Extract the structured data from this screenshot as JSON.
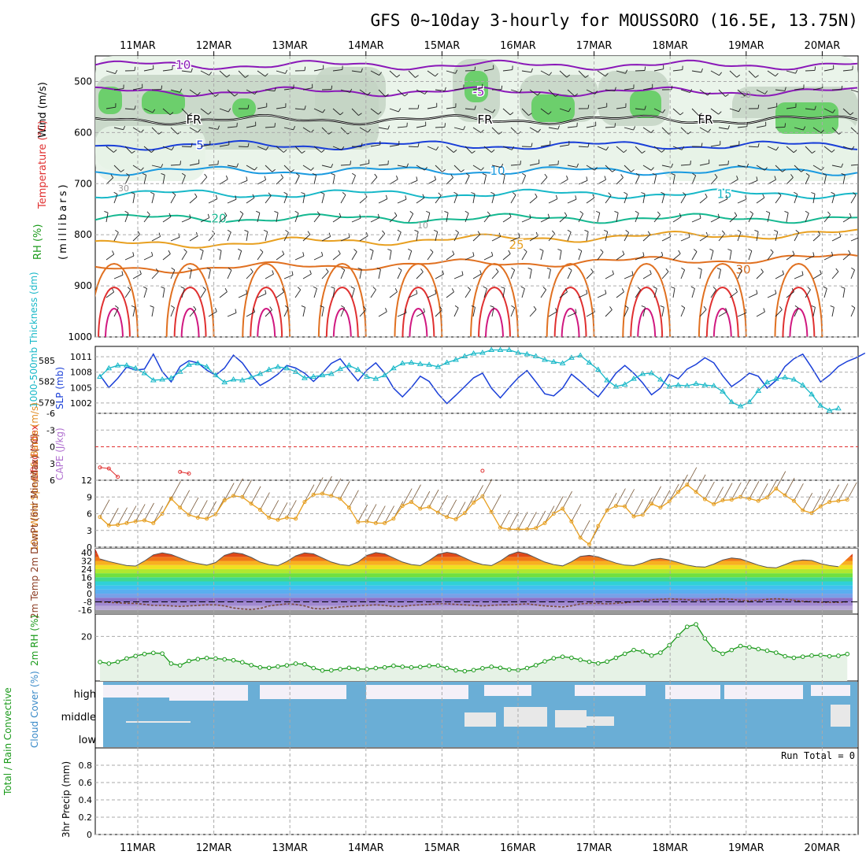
{
  "title": "GFS 0~10day 3-hourly for MOUSSORO (16.5E, 13.75N)",
  "dates": [
    "11MAR",
    "12MAR",
    "13MAR",
    "14MAR",
    "15MAR",
    "16MAR",
    "17MAR",
    "18MAR",
    "19MAR",
    "20MAR"
  ],
  "colors": {
    "purple": "#8a18b8",
    "blue": "#1a3fd8",
    "lightblue": "#1a9ae0",
    "cyan": "#18b8c8",
    "teal": "#14b890",
    "orange": "#e8a020",
    "darkorange": "#e07020",
    "red": "#e03030",
    "magenta": "#d01880",
    "green": "#1a9a1a",
    "cloud": "#6aaed6",
    "cloudlight": "#f4f0f8",
    "rhlight": "#e6f2e6",
    "rhmid": "#c4d4c4",
    "rhgreen": "#5ccc5c",
    "grey": "#999999",
    "brown": "#7a5a3a"
  },
  "chart_data": [
    {
      "type": "contour",
      "panel": "upper-air",
      "ylabel_parts": [
        "Wind (m/s)",
        "Temperature (°C)",
        "RH (%)",
        "(millibars)"
      ],
      "yticks": [
        500,
        600,
        700,
        800,
        900,
        1000
      ],
      "ylim": [
        450,
        1000
      ],
      "temperature_contours": [
        {
          "label": "-10",
          "level_mb": 468
        },
        {
          "label": "-5",
          "level_mb": 520
        },
        {
          "label": "FR",
          "level_mb": 575
        },
        {
          "label": "5",
          "level_mb": 625
        },
        {
          "label": "10",
          "level_mb": 675
        },
        {
          "label": "15",
          "level_mb": 720
        },
        {
          "label": "20",
          "level_mb": 768
        },
        {
          "label": "25",
          "level_mb": 820
        },
        {
          "label": "30",
          "level_mb": 868
        }
      ],
      "rh_labels": [
        "10",
        "30"
      ]
    },
    {
      "type": "line",
      "panel": "thickness-slp",
      "ylabel_left": "1000-500mb Thickness (dm)",
      "ylabel_right": "SLP (mb)",
      "yticks_left": [
        579,
        582,
        585
      ],
      "yticks_right": [
        1002,
        1005,
        1008,
        1011
      ],
      "series": [
        {
          "name": "SLP",
          "values": [
            1007.4,
            1005,
            1006.8,
            1009,
            1008.4,
            1008.6,
            1011.5,
            1008.1,
            1006.1,
            1009.1,
            1010.2,
            1009.8,
            1008.4,
            1007.4,
            1008.8,
            1011.3,
            1009.8,
            1007.4,
            1005.4,
            1006.4,
            1007.6,
            1009.3,
            1008.8,
            1007.8,
            1006.2,
            1007.8,
            1009.7,
            1010.6,
            1008.4,
            1006.3,
            1008.4,
            1009.8,
            1007.8,
            1004.9,
            1003.2,
            1005,
            1007.2,
            1006.2,
            1003.8,
            1001.9,
            1003.5,
            1005.2,
            1006.9,
            1007.8,
            1004.9,
            1003,
            1005,
            1006.9,
            1008.3,
            1006.1,
            1003.8,
            1003.4,
            1004.9,
            1007.6,
            1006.2,
            1004.6,
            1003.2,
            1005.4,
            1007.8,
            1009.3,
            1007.8,
            1005.9,
            1003.6,
            1004.9,
            1007.6,
            1006.7,
            1008.6,
            1009.5,
            1010.8,
            1009.8,
            1007.3,
            1005.2,
            1006.4,
            1007.8,
            1007.2,
            1004.9,
            1006.4,
            1009.1,
            1010.6,
            1011.5,
            1008.9,
            1006.1,
            1007.4,
            1009.1,
            1010.1,
            1010.8,
            1011.7
          ]
        },
        {
          "name": "Thickness",
          "values": [
            582.7,
            583.9,
            584.3,
            584.3,
            583.9,
            583.2,
            582.2,
            582.3,
            582.5,
            583.4,
            584.4,
            584.6,
            584.1,
            582.9,
            581.9,
            582.3,
            582.2,
            582.6,
            583.1,
            583.7,
            584.1,
            583.9,
            583.4,
            582.5,
            582.7,
            582.9,
            583.1,
            583.8,
            584.3,
            583.7,
            582.7,
            582.4,
            582.9,
            583.9,
            584.6,
            584.7,
            584.5,
            584.4,
            584.1,
            584.7,
            585.1,
            585.6,
            586,
            586.1,
            586.5,
            586.5,
            586.5,
            586.1,
            585.9,
            585.6,
            585.1,
            584.8,
            584.6,
            585.4,
            585.7,
            584.7,
            583.7,
            582.2,
            581.3,
            581.6,
            582.4,
            583.1,
            583.2,
            582.3,
            581.3,
            581.5,
            581.4,
            581.7,
            581.5,
            581.4,
            580.6,
            579.1,
            578.5,
            579.1,
            580.7,
            581.9,
            582.4,
            582.6,
            582.3,
            581.5,
            580.2,
            578.6,
            577.9,
            578.2
          ]
        }
      ]
    },
    {
      "type": "line",
      "panel": "stability",
      "ylabel_left": "Lifted Index",
      "ylabel_right": "CAPE (J/kg)",
      "yticks": [
        "-6",
        "-3",
        "0",
        "3",
        "6"
      ],
      "ylim": [
        -6,
        6
      ],
      "series": [
        {
          "name": "Lifted Index",
          "values": [
            3.7,
            3.9,
            5.4
          ]
        },
        {
          "name": "Lifted Index (11.6MAR)",
          "values": [
            4.5,
            4.8
          ]
        },
        {
          "name": "Lifted Index (15.5MAR)",
          "values": [
            4.3
          ]
        }
      ]
    },
    {
      "type": "line",
      "panel": "wind10m",
      "ylabel": "10m Wind Speed & Barbs (m/s)",
      "yticks": [
        "0",
        "3",
        "6",
        "9",
        "12"
      ],
      "ylim": [
        0,
        12
      ],
      "series": [
        {
          "name": "10m Wind Speed",
          "values": [
            5.4,
            3.9,
            4,
            4.3,
            4.6,
            4.8,
            4.3,
            6,
            8.7,
            7.1,
            5.8,
            5.3,
            5.1,
            5.9,
            8.4,
            9.2,
            9,
            7.8,
            6.7,
            5.3,
            4.9,
            5.3,
            5.1,
            8.1,
            9.4,
            9.6,
            9.2,
            8.7,
            7.1,
            4.5,
            4.6,
            4.3,
            4.3,
            5.1,
            7.4,
            8.1,
            6.9,
            7.2,
            6.2,
            5.4,
            5,
            6.1,
            8,
            9.1,
            6.3,
            3.5,
            3.2,
            3.2,
            3.2,
            3.4,
            4.3,
            6,
            6.9,
            4.6,
            1.7,
            0.5,
            3.8,
            6.6,
            7.4,
            7.3,
            5.5,
            5.8,
            7.8,
            7.1,
            8.2,
            9.9,
            11.2,
            9.9,
            8.6,
            7.7,
            8.4,
            8.5,
            9,
            8.7,
            8.3,
            8.9,
            10.5,
            9.3,
            8.3,
            6.6,
            6.1,
            7.3,
            8.1,
            8.3,
            8.5
          ]
        }
      ]
    },
    {
      "type": "area",
      "panel": "temp2m",
      "ylabel": "2m Temp 2m DewPt (6hr Min/Max) (°C)",
      "yticks": [
        "40",
        "32",
        "24",
        "16",
        "8",
        "0",
        "-8",
        "-16"
      ],
      "ylim": [
        -20,
        44
      ],
      "series": [
        {
          "name": "2m Temp",
          "values": [
            34,
            31.5,
            29.5,
            27.5,
            27,
            32,
            38,
            40,
            38.4,
            35,
            31.5,
            29.5,
            28,
            30.5,
            37.5,
            40.2,
            39,
            35.5,
            31,
            28.5,
            27.5,
            31.5,
            37,
            40,
            39,
            35,
            31,
            28.5,
            27.5,
            31,
            37.5,
            40.2,
            39,
            35,
            31,
            28.5,
            27.5,
            32.5,
            38.5,
            40.5,
            39,
            35,
            31,
            28.5,
            27.5,
            32,
            38,
            41,
            39,
            35,
            31,
            28.5,
            27.2,
            31.2,
            36.5,
            37.5,
            36,
            33,
            30,
            28,
            27.5,
            30,
            33.5,
            34.5,
            33,
            30.5,
            28,
            26.5,
            26,
            29,
            33,
            35,
            34,
            31,
            28,
            25.8,
            25.3,
            28.5,
            32,
            33,
            32.5,
            29.5,
            27.5,
            26.5
          ]
        },
        {
          "name": "2m DewPt",
          "values": [
            -8,
            -8.5,
            -9,
            -9.5,
            -9.5,
            -10.5,
            -11.5,
            -11.5,
            -12,
            -12.5,
            -12,
            -11.5,
            -11,
            -11,
            -12,
            -14,
            -15,
            -15.5,
            -14.5,
            -12,
            -11,
            -10,
            -10.5,
            -12,
            -14.5,
            -15,
            -14,
            -13,
            -12.5,
            -12,
            -11.5,
            -11,
            -11.5,
            -12.5,
            -12.5,
            -11.5,
            -11,
            -10.5,
            -10,
            -10,
            -10.5,
            -11,
            -11.5,
            -12,
            -11.5,
            -11,
            -11,
            -10.5,
            -10,
            -11,
            -12,
            -12.5,
            -13,
            -12,
            -10,
            -9.5,
            -9.5,
            -10,
            -9.5,
            -9,
            -8,
            -7,
            -6,
            -5.5,
            -5,
            -5.5,
            -6,
            -6.5,
            -6,
            -5.5,
            -5,
            -5.5,
            -6.5,
            -7,
            -6.5,
            -5.5,
            -5,
            -5.5,
            -6.5,
            -7.5,
            -8,
            -8.5,
            -8.5,
            -8.5,
            -8
          ]
        }
      ]
    },
    {
      "type": "area",
      "panel": "rh2m",
      "ylabel": "2m RH (%)",
      "yticks": [
        "20"
      ],
      "ylim": [
        0,
        30
      ],
      "series": [
        {
          "name": "2m RH",
          "values": [
            8.5,
            7.8,
            8.6,
            10.1,
            11.2,
            12.1,
            12.6,
            12.3,
            7.8,
            7,
            9,
            9.8,
            10.3,
            10.1,
            9.7,
            9.3,
            8.4,
            7.1,
            6.1,
            5.9,
            6.5,
            7,
            7.8,
            7.5,
            5.8,
            4.7,
            4.8,
            5.3,
            5.9,
            5.4,
            5.3,
            5.8,
            6.1,
            6.8,
            6.4,
            6.1,
            6.3,
            6.8,
            6.9,
            5.8,
            4.8,
            4.4,
            4.9,
            5.7,
            6.4,
            5.9,
            5.1,
            4.9,
            5.8,
            7.1,
            8.8,
            10.2,
            10.9,
            10.4,
            9.5,
            8.6,
            7.9,
            8.7,
            10.4,
            12.2,
            13.9,
            13.2,
            11.4,
            12.7,
            16,
            20.4,
            24.3,
            25.4,
            19.1,
            14.1,
            12.2,
            13.9,
            15.7,
            15.1,
            14.3,
            13.6,
            12.7,
            11.1,
            10.4,
            10.9,
            11.4,
            11.6,
            11.1,
            11.3,
            12.1
          ]
        }
      ]
    },
    {
      "type": "heatmap",
      "panel": "cloud",
      "ylabel": "Cloud Cover (%)",
      "rows": [
        "high",
        "middle",
        "low"
      ]
    },
    {
      "type": "bar",
      "panel": "precip",
      "ylabel_left": "Total / Rain Convective",
      "ylabel": "3hr Precip (mm)",
      "yticks": [
        "0",
        "0.2",
        "0.4",
        "0.6",
        "0.8"
      ],
      "ylim": [
        0,
        1
      ],
      "run_total": "Run Total = 0",
      "values": []
    }
  ]
}
